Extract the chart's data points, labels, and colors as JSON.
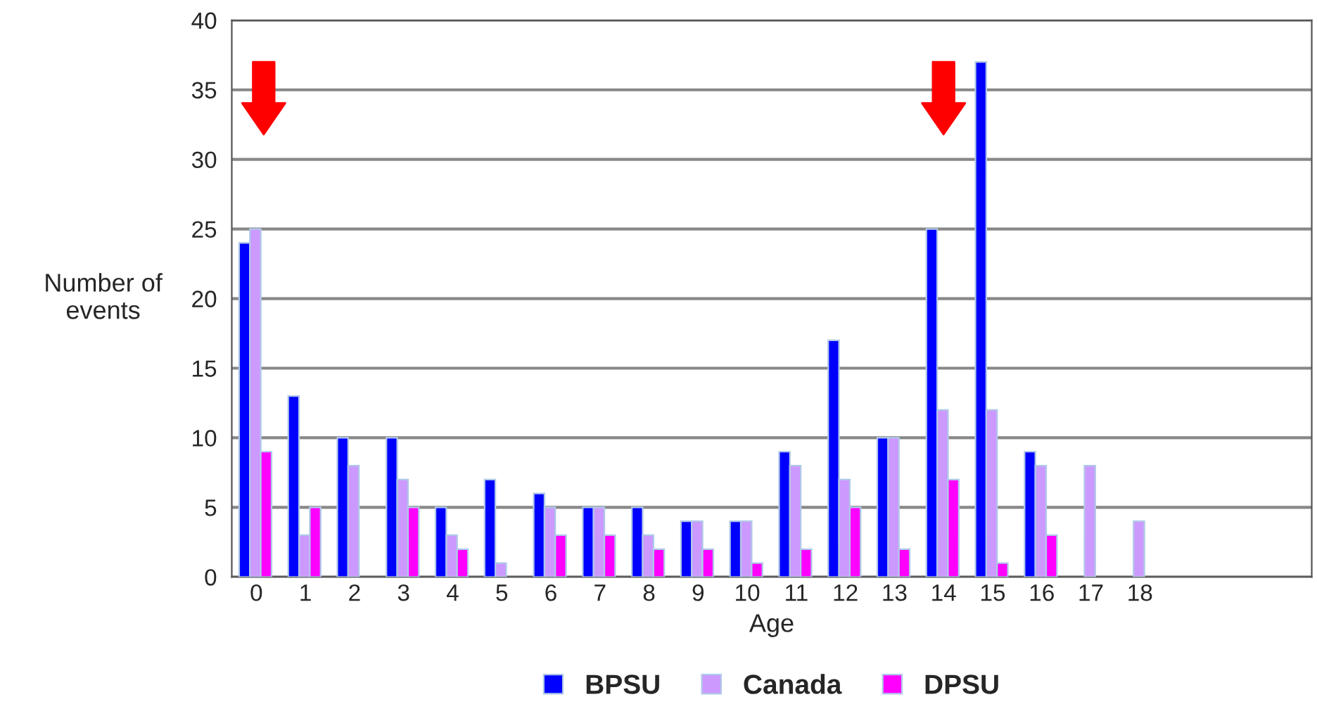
{
  "chart_data": {
    "type": "bar",
    "xlabel": "Age",
    "ylabel": "Number of\nevents",
    "categories": [
      "0",
      "1",
      "2",
      "3",
      "4",
      "5",
      "6",
      "7",
      "8",
      "9",
      "10",
      "11",
      "12",
      "13",
      "14",
      "15",
      "16",
      "17",
      "18",
      null,
      null,
      null
    ],
    "series": [
      {
        "name": "BPSU",
        "color": "#0000ff",
        "values": [
          24,
          13,
          10,
          10,
          5,
          7,
          6,
          5,
          5,
          4,
          4,
          9,
          17,
          10,
          25,
          37,
          9,
          0,
          0,
          null,
          null,
          null
        ]
      },
      {
        "name": "Canada",
        "color": "#cc99ff",
        "values": [
          25,
          3,
          8,
          7,
          3,
          1,
          5,
          5,
          3,
          4,
          4,
          8,
          7,
          10,
          12,
          12,
          8,
          8,
          4,
          null,
          null,
          null
        ]
      },
      {
        "name": "DPSU",
        "color": "#ff00ff",
        "values": [
          9,
          5,
          0,
          5,
          2,
          0,
          3,
          3,
          2,
          2,
          1,
          2,
          5,
          2,
          7,
          1,
          3,
          0,
          0,
          null,
          null,
          null
        ]
      }
    ],
    "ylim": [
      0,
      40
    ],
    "yticks": [
      0,
      5,
      10,
      15,
      20,
      25,
      30,
      35,
      40
    ],
    "grid": "y",
    "legend": "bottom"
  }
}
